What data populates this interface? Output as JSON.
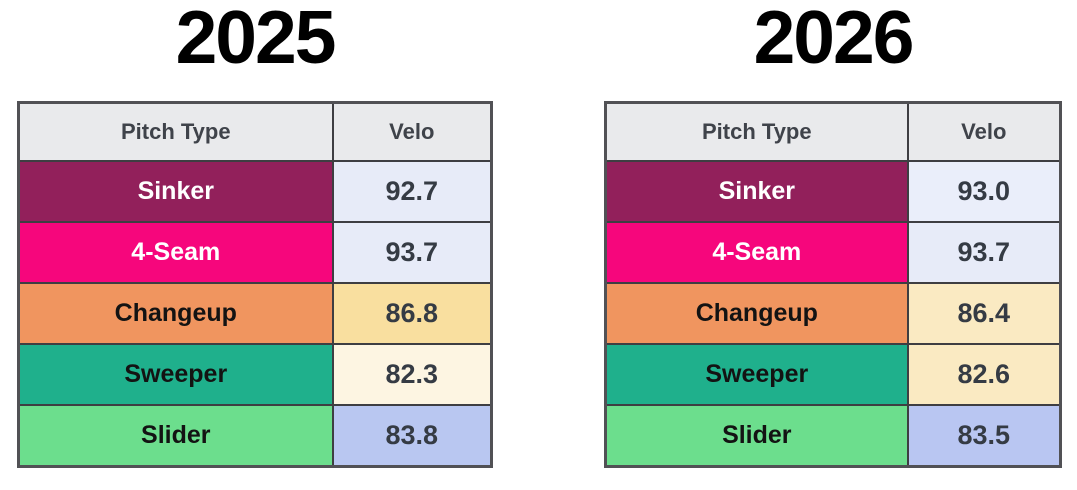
{
  "page": {
    "background": "#FFFFFF",
    "grid_border_color": "#3E3E42",
    "outer_border_color": "#515155",
    "velo_text_color": "#353B44"
  },
  "tables": [
    {
      "title": "2025",
      "header": {
        "pitch": "Pitch Type",
        "velo": "Velo",
        "bg": "#E9EAEC",
        "text_color": "#3F434A"
      },
      "rows": [
        {
          "pitch": "Sinker",
          "velo": "92.7",
          "pitch_bg": "#92205B",
          "pitch_text": "#FFFFFF",
          "velo_bg": "#E7EBF8"
        },
        {
          "pitch": "4-Seam",
          "velo": "93.7",
          "pitch_bg": "#F6067C",
          "pitch_text": "#FFFFFF",
          "velo_bg": "#E7EBF8"
        },
        {
          "pitch": "Changeup",
          "velo": "86.8",
          "pitch_bg": "#F0955F",
          "pitch_text": "#131313",
          "velo_bg": "#F9DF9F"
        },
        {
          "pitch": "Sweeper",
          "velo": "82.3",
          "pitch_bg": "#1FB08C",
          "pitch_text": "#131313",
          "velo_bg": "#FDF5E2"
        },
        {
          "pitch": "Slider",
          "velo": "83.8",
          "pitch_bg": "#6CDE8D",
          "pitch_text": "#131313",
          "velo_bg": "#B9C7F1"
        }
      ]
    },
    {
      "title": "2026",
      "header": {
        "pitch": "Pitch Type",
        "velo": "Velo",
        "bg": "#E9EAEC",
        "text_color": "#3F434A"
      },
      "rows": [
        {
          "pitch": "Sinker",
          "velo": "93.0",
          "pitch_bg": "#92205B",
          "pitch_text": "#FFFFFF",
          "velo_bg": "#EAEEFA"
        },
        {
          "pitch": "4-Seam",
          "velo": "93.7",
          "pitch_bg": "#F6067C",
          "pitch_text": "#FFFFFF",
          "velo_bg": "#E7EBF8"
        },
        {
          "pitch": "Changeup",
          "velo": "86.4",
          "pitch_bg": "#F0955F",
          "pitch_text": "#131313",
          "velo_bg": "#FAEAC2"
        },
        {
          "pitch": "Sweeper",
          "velo": "82.6",
          "pitch_bg": "#1FB08C",
          "pitch_text": "#131313",
          "velo_bg": "#FAEAC2"
        },
        {
          "pitch": "Slider",
          "velo": "83.5",
          "pitch_bg": "#6CDE8D",
          "pitch_text": "#131313",
          "velo_bg": "#B9C6F2"
        }
      ]
    }
  ],
  "chart_data": [
    {
      "type": "table",
      "title": "2025",
      "columns": [
        "Pitch Type",
        "Velo"
      ],
      "rows": [
        [
          "Sinker",
          92.7
        ],
        [
          "4-Seam",
          93.7
        ],
        [
          "Changeup",
          86.8
        ],
        [
          "Sweeper",
          82.3
        ],
        [
          "Slider",
          83.8
        ]
      ]
    },
    {
      "type": "table",
      "title": "2026",
      "columns": [
        "Pitch Type",
        "Velo"
      ],
      "rows": [
        [
          "Sinker",
          93.0
        ],
        [
          "4-Seam",
          93.7
        ],
        [
          "Changeup",
          86.4
        ],
        [
          "Sweeper",
          82.6
        ],
        [
          "Slider",
          83.5
        ]
      ]
    }
  ]
}
